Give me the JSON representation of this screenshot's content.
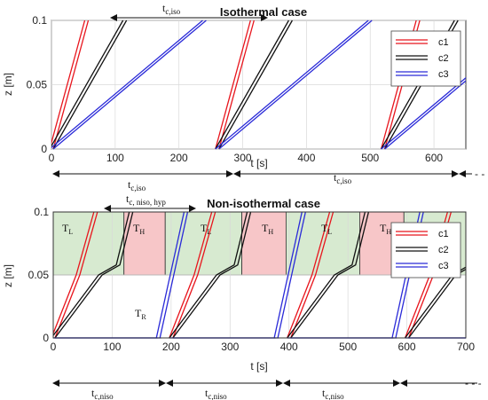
{
  "colors": {
    "c1": "#e8141c",
    "c2": "#111111",
    "c3": "#2a2ad8",
    "low": "#d7ead0",
    "high": "#f7c6c8"
  },
  "chart_data": [
    {
      "type": "line",
      "title": "Isothermal case",
      "xlabel": "t [s]",
      "ylabel": "z [m]",
      "xlim": [
        0,
        650
      ],
      "ylim": [
        0,
        0.1
      ],
      "xticks": [
        "0",
        "100",
        "200",
        "300",
        "400",
        "500",
        "600"
      ],
      "yticks": [
        "0",
        "0.05",
        "0.1"
      ],
      "legend_position": "top-right",
      "legend": [
        "c1",
        "c2",
        "c3"
      ],
      "cycle_start_times": [
        0,
        260,
        520
      ],
      "series": [
        {
          "name": "c1",
          "color_key": "c1",
          "x": [
            0,
            55
          ],
          "y": [
            0,
            0.1
          ]
        },
        {
          "name": "c2",
          "color_key": "c2",
          "x": [
            0,
            115
          ],
          "y": [
            0,
            0.1
          ]
        },
        {
          "name": "c3",
          "color_key": "c3",
          "x": [
            0,
            240
          ],
          "y": [
            0,
            0.1
          ]
        }
      ],
      "annotations": {
        "top_arrow": "t_c,iso",
        "bottom_arrows": [
          "t_c,iso",
          "t_c,iso"
        ],
        "ellipsis": "- - -"
      }
    },
    {
      "type": "line",
      "title": "Non-isothermal case",
      "xlabel": "t [s]",
      "ylabel": "z [m]",
      "xlim": [
        0,
        700
      ],
      "ylim": [
        0,
        0.1
      ],
      "xticks": [
        "0",
        "100",
        "200",
        "300",
        "400",
        "500",
        "600",
        "700"
      ],
      "yticks": [
        "0",
        "0.05",
        "0.1"
      ],
      "legend_position": "top-right",
      "legend": [
        "c1",
        "c2",
        "c3"
      ],
      "cycle_start_times": [
        0,
        200,
        400,
        600
      ],
      "zones": [
        {
          "label": "T_L",
          "x0": 0,
          "x1": 120,
          "kind": "low"
        },
        {
          "label": "T_H",
          "x0": 120,
          "x1": 190,
          "kind": "high"
        },
        {
          "label": "T_L",
          "x0": 190,
          "x1": 320,
          "kind": "low"
        },
        {
          "label": "T_H",
          "x0": 320,
          "x1": 395,
          "kind": "high"
        },
        {
          "label": "T_L",
          "x0": 395,
          "x1": 520,
          "kind": "low"
        },
        {
          "label": "T_H",
          "x0": 520,
          "x1": 595,
          "kind": "high"
        },
        {
          "label": "",
          "x0": 595,
          "x1": 700,
          "kind": "low"
        }
      ],
      "zone_band_ylim": [
        0.05,
        0.1
      ],
      "reservoir_label": "T_R",
      "series": [
        {
          "name": "c1",
          "color_key": "c1",
          "x": [
            0,
            42,
            72
          ],
          "y": [
            0,
            0.05,
            0.1
          ]
        },
        {
          "name": "c2",
          "color_key": "c2",
          "x": [
            0,
            80,
            110,
            132
          ],
          "y": [
            0,
            0.05,
            0.058,
            0.1
          ]
        },
        {
          "name": "c3",
          "color_key": "c3",
          "x": [
            0,
            180,
            178,
            225
          ],
          "y": [
            0,
            0,
            0,
            0.1
          ]
        }
      ],
      "annotations": {
        "top_arrow": "t_c, niso, hyp",
        "bottom_arrows": [
          "t_c,niso",
          "t_c,niso",
          "t_c,niso"
        ],
        "ellipsis": "- - -"
      }
    }
  ],
  "labels": {
    "top_title": "Isothermal case",
    "bottom_title": "Non-isothermal case",
    "xlabel": "t [s]",
    "ylabel": "z [m]",
    "tc_iso_main": "t",
    "tc_iso_sub": "c,iso",
    "tc_niso_main": "t",
    "tc_niso_sub": "c,niso",
    "tc_hyp_main": "t",
    "tc_hyp_sub": "c, niso, hyp",
    "tl_main": "T",
    "tl_sub": "L",
    "th_main": "T",
    "th_sub": "H",
    "tr_main": "T",
    "tr_sub": "R",
    "ellipsis": "- - -"
  }
}
